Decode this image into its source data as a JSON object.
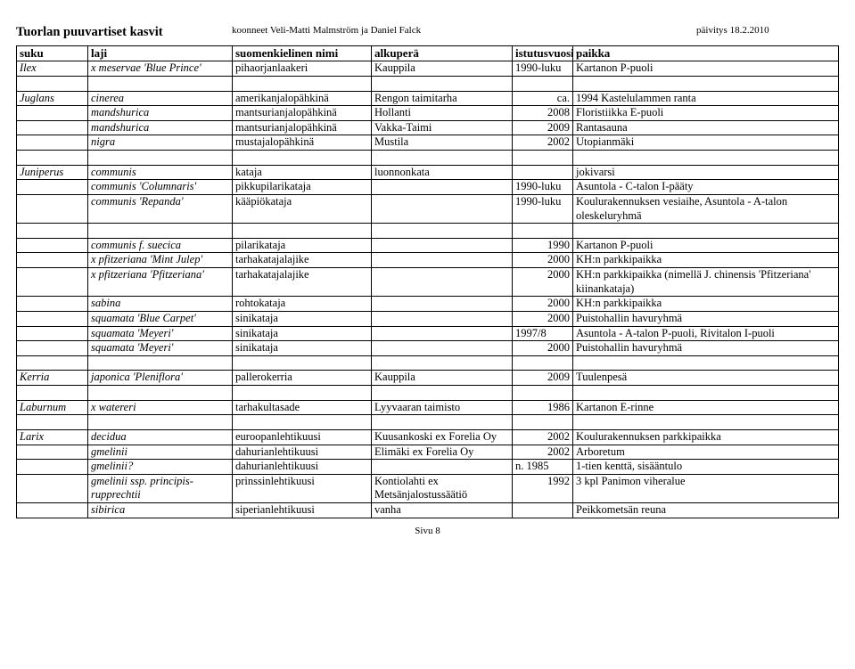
{
  "header": {
    "title": "Tuorlan puuvartiset kasvit",
    "compilers": "koonneet Veli-Matti Malmström ja Daniel Falck",
    "updated": "päivitys 18.2.2010"
  },
  "columns": [
    "suku",
    "laji",
    "suomenkielinen nimi",
    "alkuperä",
    "istutusvuosi",
    "paikka"
  ],
  "rows": [
    {
      "c": [
        "Ilex",
        "x meservae 'Blue Prince'",
        "pihaorjanlaakeri",
        "Kauppila",
        "1990-luku",
        "Kartanon P-puoli"
      ],
      "i": [
        true,
        true,
        false,
        false,
        false,
        false
      ]
    },
    {
      "c": [
        "",
        "",
        "",
        "",
        "",
        ""
      ],
      "i": [
        false,
        false,
        false,
        false,
        false,
        false
      ]
    },
    {
      "c": [
        "Juglans",
        "cinerea",
        "amerikanjalopähkinä",
        "Rengon taimitarha",
        "ca.",
        ""
      ],
      "i": [
        true,
        true,
        false,
        false,
        false,
        false
      ]
    },
    {
      "c": [
        "",
        "mandshurica",
        "mantsurianjalopähkinä",
        "Hollanti",
        "2008",
        "Floristiikka E-puoli"
      ],
      "i": [
        false,
        true,
        false,
        false,
        false,
        false
      ],
      "note": "1994 Kastelulammen ranta",
      "noteCol": 5
    },
    {
      "c": [
        "",
        "mandshurica",
        "mantsurianjalopähkinä",
        "Vakka-Taimi",
        "2009",
        "Rantasauna"
      ],
      "i": [
        false,
        true,
        false,
        false,
        false,
        false
      ]
    },
    {
      "c": [
        "",
        "nigra",
        "mustajalopähkinä",
        "Mustila",
        "2002",
        "Utopianmäki"
      ],
      "i": [
        false,
        true,
        false,
        false,
        false,
        false
      ]
    },
    {
      "c": [
        "",
        "",
        "",
        "",
        "",
        ""
      ],
      "i": [
        false,
        false,
        false,
        false,
        false,
        false
      ]
    },
    {
      "c": [
        "Juniperus",
        "communis",
        "kataja",
        "luonnonkata",
        "",
        "jokivarsi"
      ],
      "i": [
        true,
        true,
        false,
        false,
        false,
        false
      ]
    },
    {
      "c": [
        "",
        "communis 'Columnaris'",
        "pikkupilarikataja",
        "",
        "1990-luku",
        "Asuntola - C-talon I-pääty"
      ],
      "i": [
        false,
        true,
        false,
        false,
        false,
        false
      ]
    },
    {
      "c": [
        "",
        "communis 'Repanda'",
        "kääpiökataja",
        "",
        "1990-luku",
        "Koulurakennuksen vesiaihe, Asuntola - A-talon oleskeluryhmä"
      ],
      "i": [
        false,
        true,
        false,
        false,
        false,
        false
      ]
    },
    {
      "c": [
        "",
        "",
        "",
        "",
        "",
        ""
      ],
      "i": [
        false,
        false,
        false,
        false,
        false,
        false
      ]
    },
    {
      "c": [
        "",
        "communis f. suecica",
        "pilarikataja",
        "",
        "1990",
        "Kartanon P-puoli"
      ],
      "i": [
        false,
        true,
        false,
        false,
        false,
        false
      ]
    },
    {
      "c": [
        "",
        "x pfitzeriana 'Mint Julep'",
        "tarhakatajalajike",
        "",
        "2000",
        "KH:n parkkipaikka"
      ],
      "i": [
        false,
        true,
        false,
        false,
        false,
        false
      ]
    },
    {
      "c": [
        "",
        "x pfitzeriana 'Pfitzeriana'",
        "tarhakatajalajike",
        "",
        "2000",
        "KH:n parkkipaikka (nimellä J. chinensis 'Pfitzeriana' kiinankataja)"
      ],
      "i": [
        false,
        true,
        false,
        false,
        false,
        false
      ]
    },
    {
      "c": [
        "",
        "sabina",
        "rohtokataja",
        "",
        "2000",
        "KH:n parkkipaikka"
      ],
      "i": [
        false,
        true,
        false,
        false,
        false,
        false
      ]
    },
    {
      "c": [
        "",
        "squamata 'Blue Carpet'",
        "sinikataja",
        "",
        "2000",
        "Puistohallin havuryhmä"
      ],
      "i": [
        false,
        true,
        false,
        false,
        false,
        false
      ]
    },
    {
      "c": [
        "",
        "squamata 'Meyeri'",
        "sinikataja",
        "",
        "1997/8",
        "Asuntola - A-talon P-puoli, Rivitalon I-puoli"
      ],
      "i": [
        false,
        true,
        false,
        false,
        false,
        false
      ]
    },
    {
      "c": [
        "",
        "squamata 'Meyeri'",
        "sinikataja",
        "",
        "2000",
        "Puistohallin havuryhmä"
      ],
      "i": [
        false,
        true,
        false,
        false,
        false,
        false
      ]
    },
    {
      "c": [
        "",
        "",
        "",
        "",
        "",
        ""
      ],
      "i": [
        false,
        false,
        false,
        false,
        false,
        false
      ]
    },
    {
      "c": [
        "Kerria",
        "japonica 'Pleniflora'",
        "pallerokerria",
        "Kauppila",
        "2009",
        "Tuulenpesä"
      ],
      "i": [
        true,
        true,
        false,
        false,
        false,
        false
      ]
    },
    {
      "c": [
        "",
        "",
        "",
        "",
        "",
        ""
      ],
      "i": [
        false,
        false,
        false,
        false,
        false,
        false
      ]
    },
    {
      "c": [
        "Laburnum",
        "x watereri",
        "tarhakultasade",
        "Lyyvaaran taimisto",
        "1986",
        "Kartanon E-rinne"
      ],
      "i": [
        true,
        true,
        false,
        false,
        false,
        false
      ]
    },
    {
      "c": [
        "",
        "",
        "",
        "",
        "",
        ""
      ],
      "i": [
        false,
        false,
        false,
        false,
        false,
        false
      ]
    },
    {
      "c": [
        "Larix",
        "decidua",
        "euroopanlehtikuusi",
        "Kuusankoski ex Forelia Oy",
        "2002",
        "Koulurakennuksen parkkipaikka"
      ],
      "i": [
        true,
        true,
        false,
        false,
        false,
        false
      ]
    },
    {
      "c": [
        "",
        "gmelinii",
        "dahurianlehtikuusi",
        "Elimäki ex Forelia Oy",
        "2002",
        "Arboretum"
      ],
      "i": [
        false,
        true,
        false,
        false,
        false,
        false
      ]
    },
    {
      "c": [
        "",
        "gmelinii?",
        "dahurianlehtikuusi",
        "",
        "n. 1985",
        "1-tien kenttä, sisääntulo"
      ],
      "i": [
        false,
        true,
        false,
        false,
        false,
        false
      ]
    },
    {
      "c": [
        "",
        "gmelinii ssp. principis-rupprechtii",
        "prinssinlehtikuusi",
        "Kontiolahti ex Metsänjalostussäätiö",
        "1992",
        "3 kpl Panimon viheralue"
      ],
      "i": [
        false,
        true,
        false,
        false,
        false,
        false
      ]
    },
    {
      "c": [
        "",
        "sibirica",
        "siperianlehtikuusi",
        "vanha",
        "",
        "Peikkometsän reuna"
      ],
      "i": [
        false,
        true,
        false,
        false,
        false,
        false
      ]
    }
  ],
  "rowNoteOverride": {
    "2": {
      "col5": "1994 Kastelulammen ranta",
      "col4right": "ca."
    }
  },
  "footer": "Sivu 8"
}
